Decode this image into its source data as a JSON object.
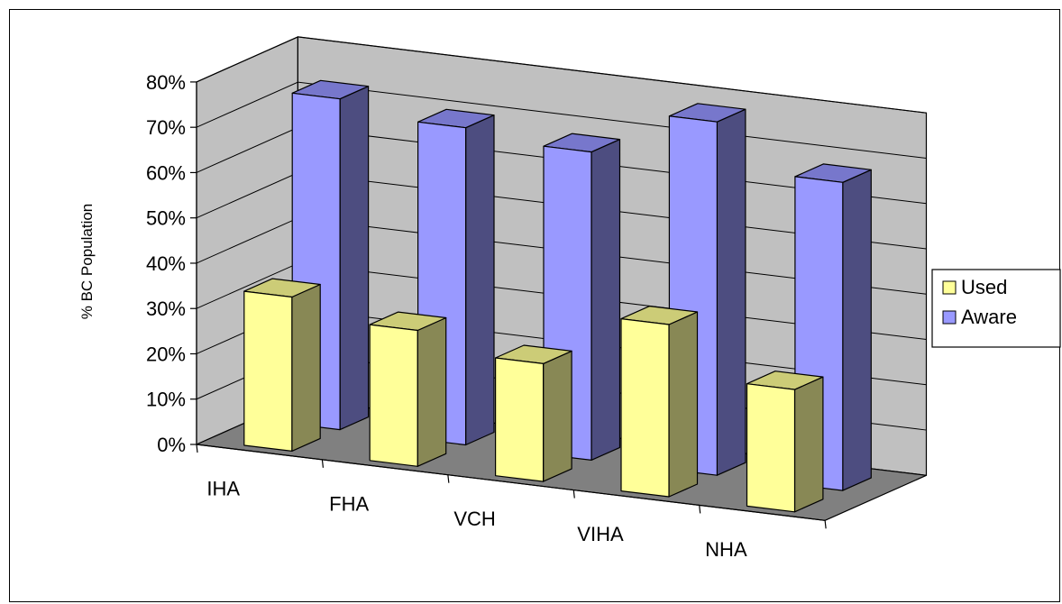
{
  "chart_data": {
    "type": "bar",
    "subtype": "3d-clustered-depth",
    "categories": [
      "IHA",
      "FHA",
      "VCH",
      "VIHA",
      "NHA"
    ],
    "series": [
      {
        "name": "Used",
        "values": [
          34,
          30,
          26,
          38,
          27
        ],
        "color": "#ffff99",
        "side_color": "#888855",
        "top_color": "#cccc77"
      },
      {
        "name": "Aware",
        "values": [
          73,
          70,
          68,
          78,
          68
        ],
        "color": "#9999ff",
        "side_color": "#4d4d80",
        "top_color": "#7777cc"
      }
    ],
    "ylabel": "% BC Population",
    "ylim": [
      0,
      80
    ],
    "yticks": [
      "0%",
      "10%",
      "20%",
      "30%",
      "40%",
      "50%",
      "60%",
      "70%",
      "80%"
    ],
    "grid": true,
    "legend_position": "right",
    "wall_color": "#c0c0c0",
    "floor_color": "#808080"
  }
}
